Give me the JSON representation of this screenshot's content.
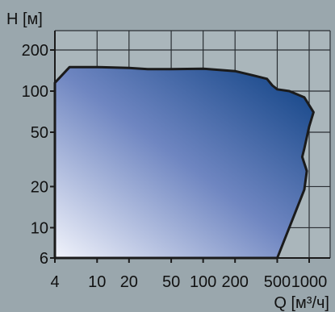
{
  "chart_data": {
    "type": "area",
    "xlabel": "Q [м³/ч]",
    "ylabel": "H [м]",
    "x_scale": "log",
    "y_scale": "log",
    "xlim": [
      4,
      1300
    ],
    "ylim": [
      6,
      300
    ],
    "x_ticks": [
      4,
      10,
      20,
      50,
      100,
      200,
      500,
      1000
    ],
    "x_tick_labels": [
      "4",
      "10",
      "20",
      "50",
      "100",
      "200",
      "500",
      "1000"
    ],
    "y_ticks": [
      6,
      10,
      20,
      50,
      100,
      200
    ],
    "y_tick_labels": [
      "6",
      "10",
      "20",
      "50",
      "100",
      "200"
    ],
    "grid": true,
    "colors": {
      "background": "#9aa7ad",
      "plot_background": "#aab6bb",
      "fill_light": "#f1f3fb",
      "fill_mid": "#6f86c1",
      "fill_dark": "#0b3f82",
      "outline": "#1b1b1b"
    },
    "envelope": [
      {
        "x": 4,
        "y": 6
      },
      {
        "x": 4,
        "y": 115
      },
      {
        "x": 5.5,
        "y": 150
      },
      {
        "x": 10,
        "y": 150
      },
      {
        "x": 20,
        "y": 148
      },
      {
        "x": 30,
        "y": 145
      },
      {
        "x": 50,
        "y": 145
      },
      {
        "x": 100,
        "y": 146
      },
      {
        "x": 200,
        "y": 140
      },
      {
        "x": 300,
        "y": 130
      },
      {
        "x": 400,
        "y": 123
      },
      {
        "x": 450,
        "y": 110
      },
      {
        "x": 500,
        "y": 103
      },
      {
        "x": 650,
        "y": 100
      },
      {
        "x": 900,
        "y": 90
      },
      {
        "x": 1100,
        "y": 70
      },
      {
        "x": 1000,
        "y": 55
      },
      {
        "x": 900,
        "y": 38
      },
      {
        "x": 860,
        "y": 33
      },
      {
        "x": 950,
        "y": 26
      },
      {
        "x": 900,
        "y": 19
      },
      {
        "x": 500,
        "y": 6
      }
    ]
  }
}
